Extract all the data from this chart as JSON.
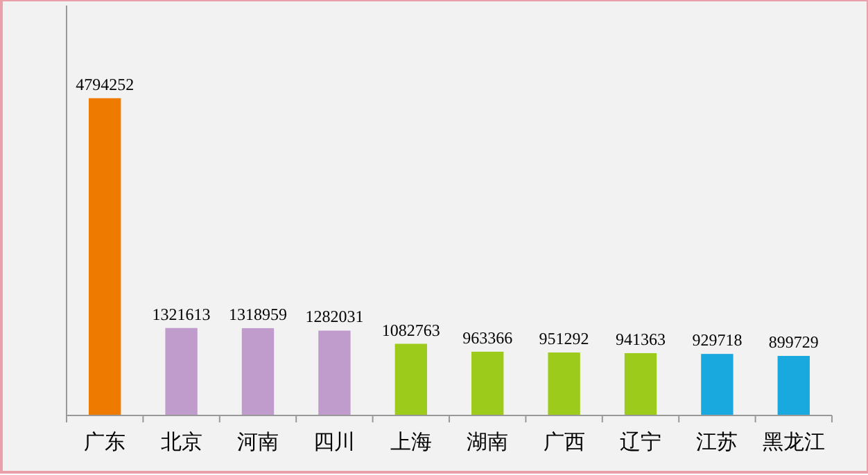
{
  "chart_data": {
    "type": "bar",
    "categories": [
      "广东",
      "北京",
      "河南",
      "四川",
      "上海",
      "湖南",
      "广西",
      "辽宁",
      "江苏",
      "黑龙江"
    ],
    "values": [
      4794252,
      1321613,
      1318959,
      1282031,
      1082763,
      963366,
      951292,
      941363,
      929718,
      899729
    ],
    "colors": [
      "#ee7b00",
      "#c09ccc",
      "#c09ccc",
      "#c09ccc",
      "#9dcb1b",
      "#9dcb1b",
      "#9dcb1b",
      "#9dcb1b",
      "#1aa9df",
      "#1aa9df"
    ],
    "data_labels": true
  }
}
